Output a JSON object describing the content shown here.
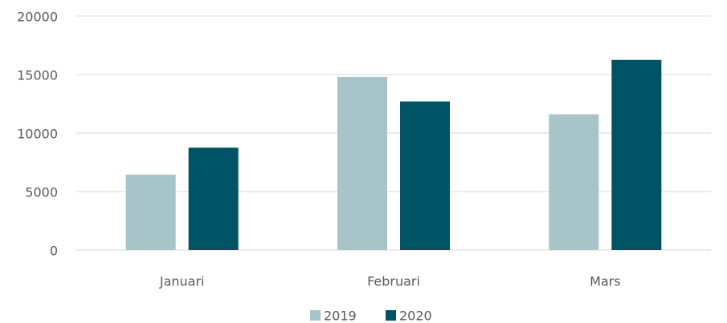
{
  "chart_data": {
    "type": "bar",
    "categories": [
      "Januari",
      "Februari",
      "Mars"
    ],
    "series": [
      {
        "name": "2019",
        "color": "#a7c4c9",
        "values": [
          6450,
          14800,
          11600
        ]
      },
      {
        "name": "2020",
        "color": "#005364",
        "values": [
          8750,
          12700,
          16250
        ]
      }
    ],
    "ylim": [
      0,
      20000
    ],
    "yticks": [
      0,
      5000,
      10000,
      15000,
      20000
    ],
    "grid": true,
    "legend": "bottom"
  }
}
